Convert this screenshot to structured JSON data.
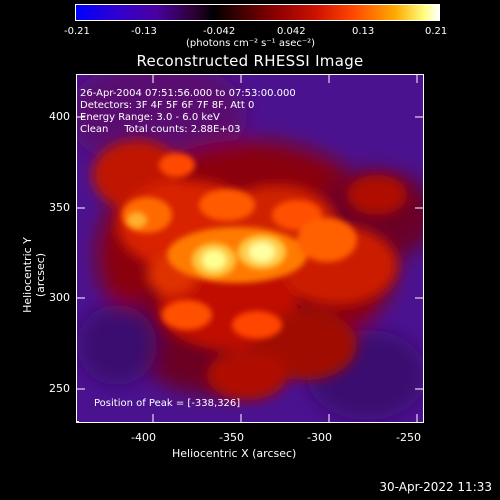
{
  "colorbar": {
    "ticks": [
      "-0.21",
      "-0.13",
      "-0.042",
      "0.042",
      "0.13",
      "0.21"
    ],
    "units": "(photons cm⁻² s⁻¹ asec⁻²)"
  },
  "title": "Reconstructed RHESSI Image",
  "annotations": {
    "time": "26-Apr-2004 07:51:56.000 to 07:53:00.000",
    "detectors": "Detectors: 3F 4F 5F 6F 7F 8F, Att 0",
    "energy": "Energy Range: 3.0 - 6.0 keV",
    "clean": "Clean     Total counts: 2.88E+03",
    "peak": "Position of Peak = [-338,326]"
  },
  "axes": {
    "x_label": "Heliocentric X (arcsec)",
    "y_label": "Heliocentric Y (arcsec)",
    "x_ticks": [
      "-400",
      "-350",
      "-300",
      "-250"
    ],
    "y_ticks": [
      "400",
      "350",
      "300",
      "250"
    ]
  },
  "timestamp": "30-Apr-2022 11:33"
}
